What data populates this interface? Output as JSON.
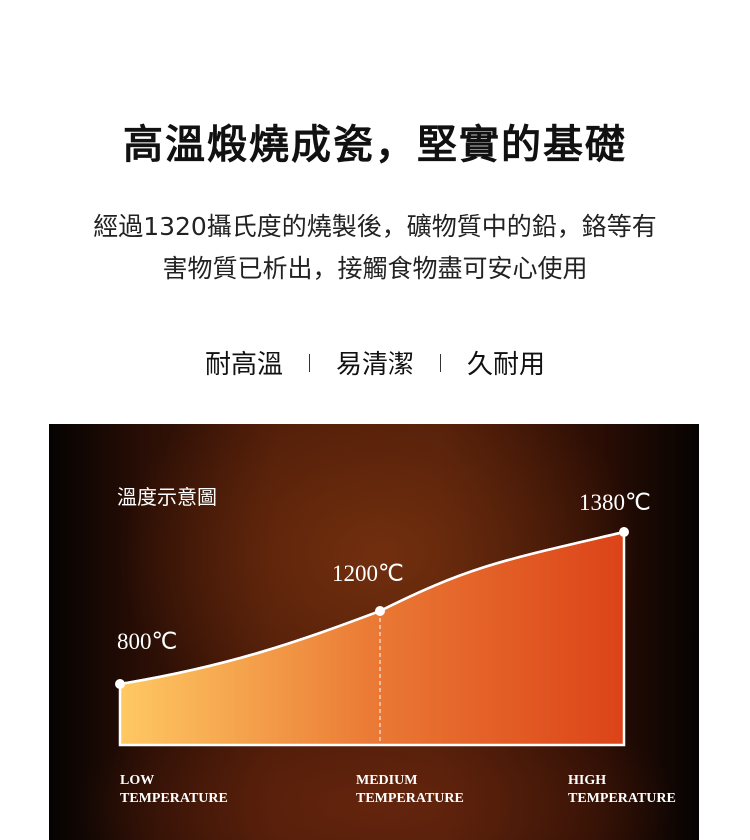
{
  "header": {
    "title": "高溫煅燒成瓷，堅實的基礎",
    "description_line1": "經過1320攝氏度的燒製後，礦物質中的鉛，鉻等有",
    "description_line2": "害物質已析出，接觸食物盡可安心使用"
  },
  "features": [
    "耐高溫",
    "易清潔",
    "久耐用"
  ],
  "chart_data": {
    "type": "area",
    "title": "溫度示意圖",
    "categories": [
      "LOW\nTEMPERATURE",
      "MEDIUM\nTEMPERATURE",
      "HIGH\nTEMPERATURE"
    ],
    "category_lines": [
      [
        "LOW",
        "TEMPERATURE"
      ],
      [
        "MEDIUM",
        "TEMPERATURE"
      ],
      [
        "HIGH",
        "TEMPERATURE"
      ]
    ],
    "values": [
      800,
      1200,
      1380
    ],
    "data_labels": [
      "800℃",
      "1200℃",
      "1380℃"
    ],
    "unit": "℃",
    "grid": false,
    "colors": {
      "fill_start": "#ffc963",
      "fill_mid": "#ea7a35",
      "fill_end": "#dc4318",
      "line": "#ffffff"
    }
  }
}
